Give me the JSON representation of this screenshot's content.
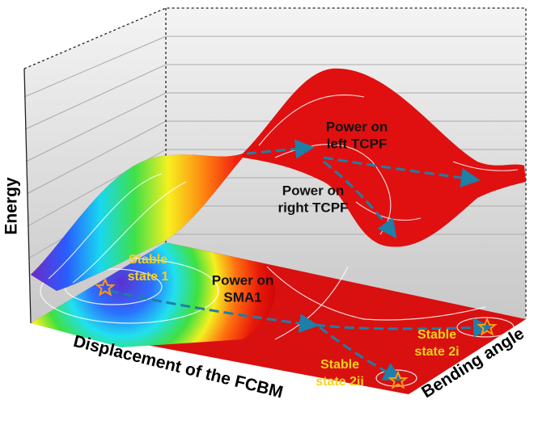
{
  "axes": {
    "z": "Energy",
    "x": "Displacement of the FCBM",
    "y": "Bending angle"
  },
  "annotations": [
    {
      "lines": [
        "Power on",
        "left TCPF"
      ]
    },
    {
      "lines": [
        "Power on",
        "right TCPF"
      ]
    },
    {
      "lines": [
        "Power on",
        "SMA1"
      ]
    }
  ],
  "states": [
    {
      "lines": [
        "Stable",
        "state 1"
      ]
    },
    {
      "lines": [
        "Stable",
        "state 2i"
      ]
    },
    {
      "lines": [
        "Stable",
        "state 2ii"
      ]
    }
  ]
}
